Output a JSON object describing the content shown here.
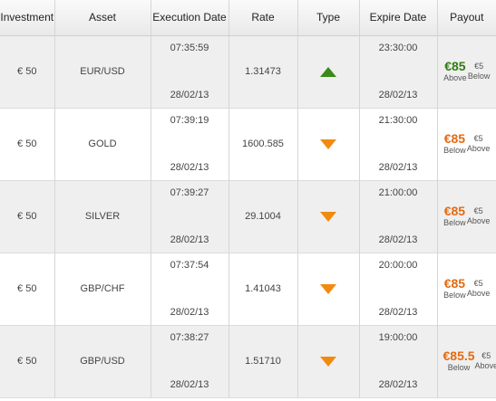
{
  "table": {
    "headers": [
      "Investment",
      "Asset",
      "Execution Date",
      "Rate",
      "Type",
      "Expire Date",
      "Payout"
    ],
    "rows": [
      {
        "investment": "€ 50",
        "asset": "EUR/USD",
        "exec_time": "07:35:59",
        "exec_date": "28/02/13",
        "rate": "1.31473",
        "type": "up",
        "expire_time": "23:30:00",
        "expire_date": "28/02/13",
        "payout_amount": "€85",
        "payout_amount_color": "#2f7d12",
        "payout_direction": "Above",
        "alt_amount": "€5",
        "alt_direction": "Below"
      },
      {
        "investment": "€ 50",
        "asset": "GOLD",
        "exec_time": "07:39:19",
        "exec_date": "28/02/13",
        "rate": "1600.585",
        "type": "down",
        "expire_time": "21:30:00",
        "expire_date": "28/02/13",
        "payout_amount": "€85",
        "payout_amount_color": "#e46a12",
        "payout_direction": "Below",
        "alt_amount": "€5",
        "alt_direction": "Above"
      },
      {
        "investment": "€ 50",
        "asset": "SILVER",
        "exec_time": "07:39:27",
        "exec_date": "28/02/13",
        "rate": "29.1004",
        "type": "down",
        "expire_time": "21:00:00",
        "expire_date": "28/02/13",
        "payout_amount": "€85",
        "payout_amount_color": "#e46a12",
        "payout_direction": "Below",
        "alt_amount": "€5",
        "alt_direction": "Above"
      },
      {
        "investment": "€ 50",
        "asset": "GBP/CHF",
        "exec_time": "07:37:54",
        "exec_date": "28/02/13",
        "rate": "1.41043",
        "type": "down",
        "expire_time": "20:00:00",
        "expire_date": "28/02/13",
        "payout_amount": "€85",
        "payout_amount_color": "#e46a12",
        "payout_direction": "Below",
        "alt_amount": "€5",
        "alt_direction": "Above"
      },
      {
        "investment": "€ 50",
        "asset": "GBP/USD",
        "exec_time": "07:38:27",
        "exec_date": "28/02/13",
        "rate": "1.51710",
        "type": "down",
        "expire_time": "19:00:00",
        "expire_date": "28/02/13",
        "payout_amount": "€85.5",
        "payout_amount_color": "#e46a12",
        "payout_direction": "Below",
        "alt_amount": "€5",
        "alt_direction": "Above"
      }
    ]
  },
  "colors": {
    "up_arrow": "#3a8a1a",
    "down_arrow": "#f28a10",
    "header_bg": "#eeeeee",
    "row_shade": "#efefef"
  },
  "icons": {
    "up": "up-triangle-icon",
    "down": "down-triangle-icon"
  }
}
